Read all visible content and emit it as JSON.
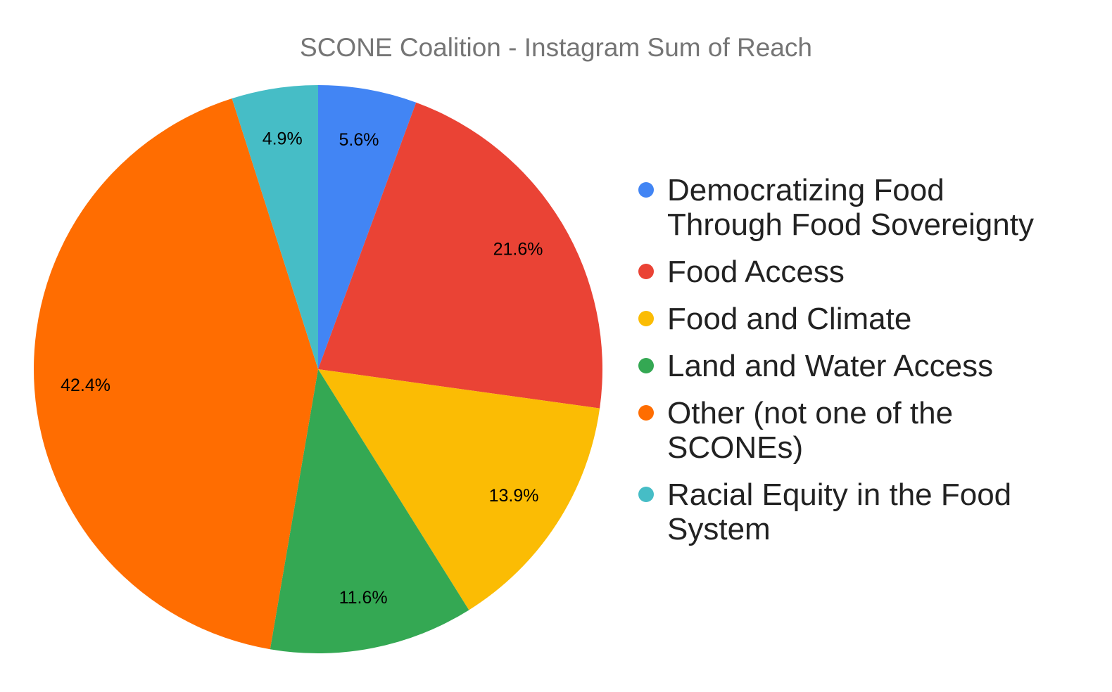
{
  "chart_data": {
    "type": "pie",
    "title": "SCONE Coalition - Instagram Sum of Reach",
    "legend_position": "right",
    "slices": [
      {
        "label": "Democratizing Food Through Food Sovereignty",
        "legend_lines": [
          "Democratizing Food",
          "Through Food Sovereignty"
        ],
        "value": 5.6,
        "display": "5.6%",
        "color": "#4285F4"
      },
      {
        "label": "Food Access",
        "legend_lines": [
          "Food Access"
        ],
        "value": 21.6,
        "display": "21.6%",
        "color": "#EA4335"
      },
      {
        "label": "Food and Climate",
        "legend_lines": [
          "Food and Climate"
        ],
        "value": 13.9,
        "display": "13.9%",
        "color": "#FBBC04"
      },
      {
        "label": "Land and Water Access",
        "legend_lines": [
          "Land and Water Access"
        ],
        "value": 11.6,
        "display": "11.6%",
        "color": "#34A853"
      },
      {
        "label": "Other (not one of the SCONEs)",
        "legend_lines": [
          "Other (not one of the",
          "SCONEs)"
        ],
        "value": 42.4,
        "display": "42.4%",
        "color": "#FF6D01"
      },
      {
        "label": "Racial Equity in the Food System",
        "legend_lines": [
          "Racial Equity in the Food",
          "System"
        ],
        "value": 4.9,
        "display": "4.9%",
        "color": "#46BDC6"
      }
    ]
  }
}
